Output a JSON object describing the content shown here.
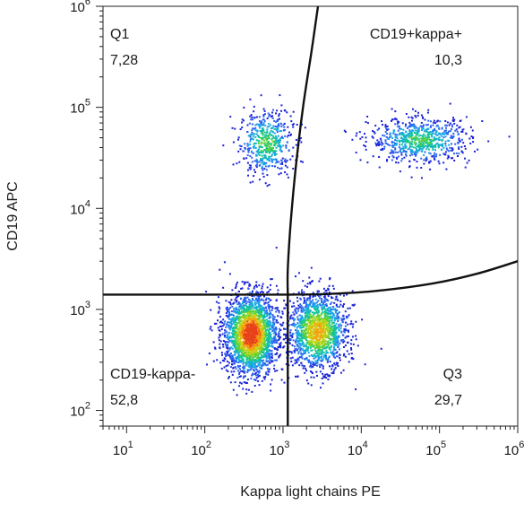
{
  "chart_data": {
    "type": "scatter",
    "subtype": "flow-cytometry-density-dot-plot",
    "title": "",
    "xlabel": "Kappa light chains PE",
    "ylabel": "CD19 APC",
    "x_scale": "log",
    "y_scale": "log",
    "xlim": [
      5,
      1000000
    ],
    "ylim": [
      70,
      1000000
    ],
    "x_ticks": [
      {
        "base": "10",
        "exp": "1",
        "value": 10
      },
      {
        "base": "10",
        "exp": "2",
        "value": 100
      },
      {
        "base": "10",
        "exp": "3",
        "value": 1000
      },
      {
        "base": "10",
        "exp": "4",
        "value": 10000
      },
      {
        "base": "10",
        "exp": "5",
        "value": 100000
      },
      {
        "base": "10",
        "exp": "6",
        "value": 1000000
      }
    ],
    "y_ticks": [
      {
        "base": "10",
        "exp": "2",
        "value": 100
      },
      {
        "base": "10",
        "exp": "3",
        "value": 1000
      },
      {
        "base": "10",
        "exp": "4",
        "value": 10000
      },
      {
        "base": "10",
        "exp": "5",
        "value": 100000
      },
      {
        "base": "10",
        "exp": "6",
        "value": 1000000
      }
    ],
    "grid": false,
    "legend": "none",
    "gates": {
      "horizontal": {
        "y": 1400,
        "x_range": [
          5,
          1150
        ]
      },
      "vertical": {
        "x": 1150,
        "y_range": [
          70,
          1400
        ]
      },
      "upper_curve": [
        [
          1150,
          1400
        ],
        [
          1150,
          2500
        ],
        [
          1250,
          7000
        ],
        [
          1450,
          25000
        ],
        [
          1800,
          100000
        ],
        [
          2300,
          350000
        ],
        [
          2800,
          1000000
        ]
      ],
      "right_curve": [
        [
          1150,
          1400
        ],
        [
          3500,
          1420
        ],
        [
          15000,
          1520
        ],
        [
          80000,
          1800
        ],
        [
          300000,
          2250
        ],
        [
          1000000,
          3000
        ]
      ]
    },
    "quadrants": [
      {
        "id": "Q1",
        "name": "Q1",
        "percent": "7,28",
        "position": "top-left"
      },
      {
        "id": "Q2",
        "name": "CD19+kappa+",
        "percent": "10,3",
        "position": "top-right"
      },
      {
        "id": "Q3",
        "name": "Q3",
        "percent": "29,7",
        "position": "bottom-right"
      },
      {
        "id": "Q4",
        "name": "CD19-kappa-",
        "percent": "52,8",
        "position": "bottom-left"
      }
    ],
    "populations": [
      {
        "name": "CD19+kappa-",
        "cx": 600,
        "cy": 45000,
        "sx": 0.17,
        "sy": 0.16,
        "n": 520,
        "peak": 0.55
      },
      {
        "name": "CD19+kappa+",
        "cx": 55000,
        "cy": 48000,
        "sx": 0.32,
        "sy": 0.11,
        "n": 720,
        "peak": 0.5
      },
      {
        "name": "CD19-kappa-",
        "cx": 380,
        "cy": 580,
        "sx": 0.17,
        "sy": 0.2,
        "n": 2300,
        "peak": 1.0
      },
      {
        "name": "CD19-kappa+",
        "cx": 2700,
        "cy": 620,
        "sx": 0.19,
        "sy": 0.19,
        "n": 1500,
        "peak": 0.78
      }
    ],
    "density_colors": [
      "#1a22d6",
      "#2c62f0",
      "#1aa7e8",
      "#12c49a",
      "#5fd23a",
      "#c8d619",
      "#f5a011",
      "#e8421a"
    ]
  }
}
